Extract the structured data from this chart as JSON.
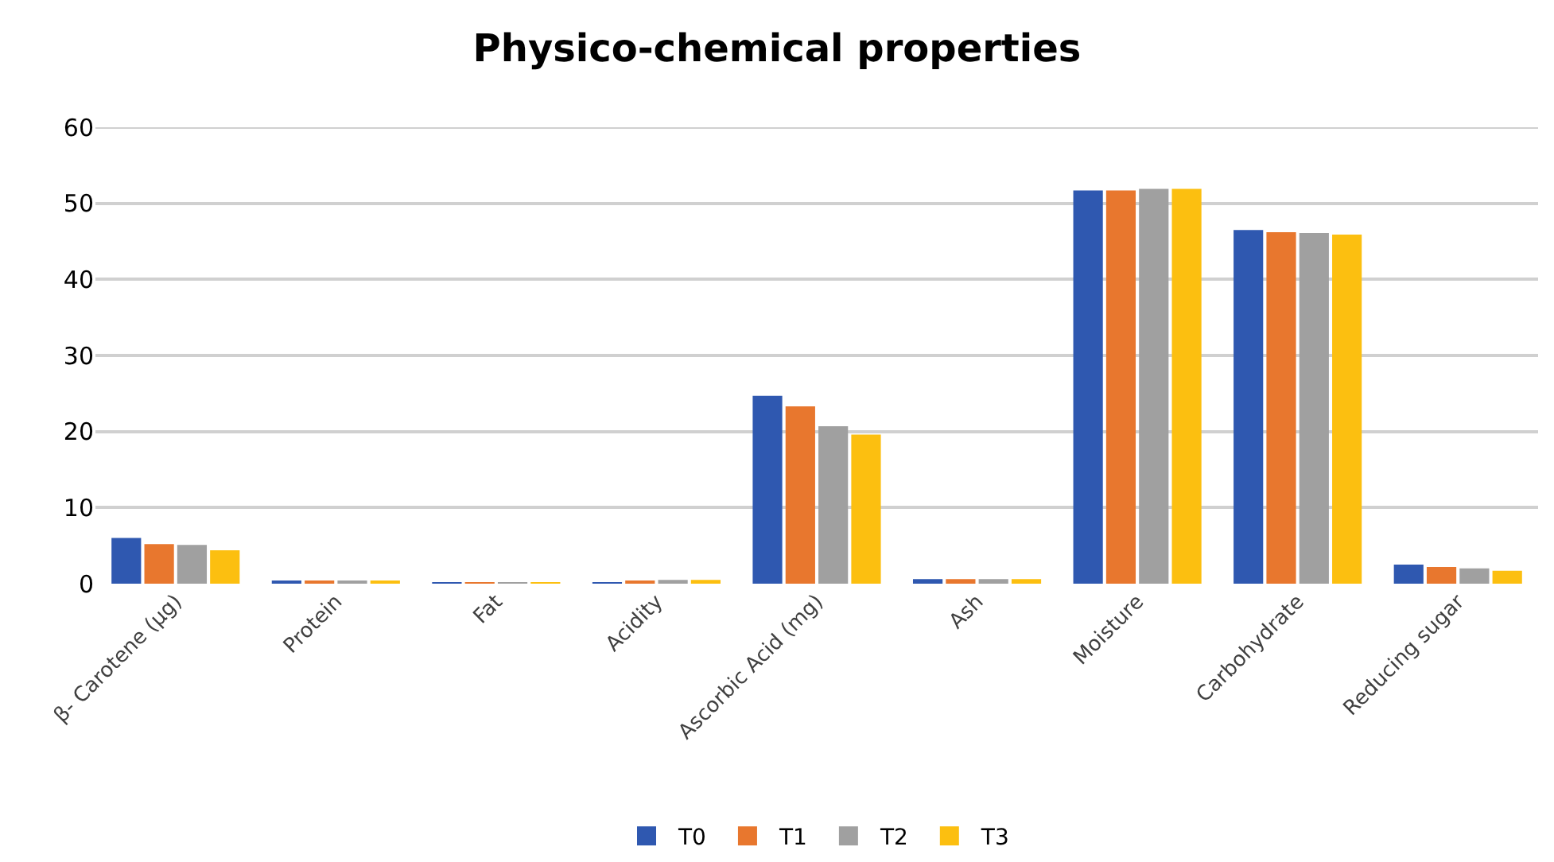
{
  "chart_data": {
    "type": "bar",
    "title": "Physico-chemical properties",
    "categories": [
      "β- Carotene (µg)",
      "Protein",
      "Fat",
      "Acidity",
      "Ascorbic Acid (mg)",
      "Ash",
      "Moisture",
      "Carbohydrate",
      "Reducing sugar"
    ],
    "series": [
      {
        "name": "T0",
        "color": "#2f58b0",
        "values": [
          6.0,
          0.3,
          0.1,
          0.2,
          24.7,
          0.6,
          51.7,
          46.5,
          2.5
        ]
      },
      {
        "name": "T1",
        "color": "#e8772e",
        "values": [
          5.2,
          0.4,
          0.1,
          0.4,
          23.3,
          0.6,
          51.7,
          46.2,
          2.2
        ]
      },
      {
        "name": "T2",
        "color": "#a0a0a0",
        "values": [
          5.1,
          0.4,
          0.1,
          0.5,
          20.7,
          0.6,
          51.9,
          46.1,
          2.0
        ]
      },
      {
        "name": "T3",
        "color": "#fcbf10",
        "values": [
          4.4,
          0.4,
          0.1,
          0.5,
          19.6,
          0.6,
          51.9,
          45.9,
          1.7
        ]
      }
    ],
    "ylim": [
      0,
      60
    ],
    "yticks": [
      0,
      10,
      20,
      30,
      40,
      50,
      60
    ],
    "grid": "y",
    "legend": "bottom"
  }
}
